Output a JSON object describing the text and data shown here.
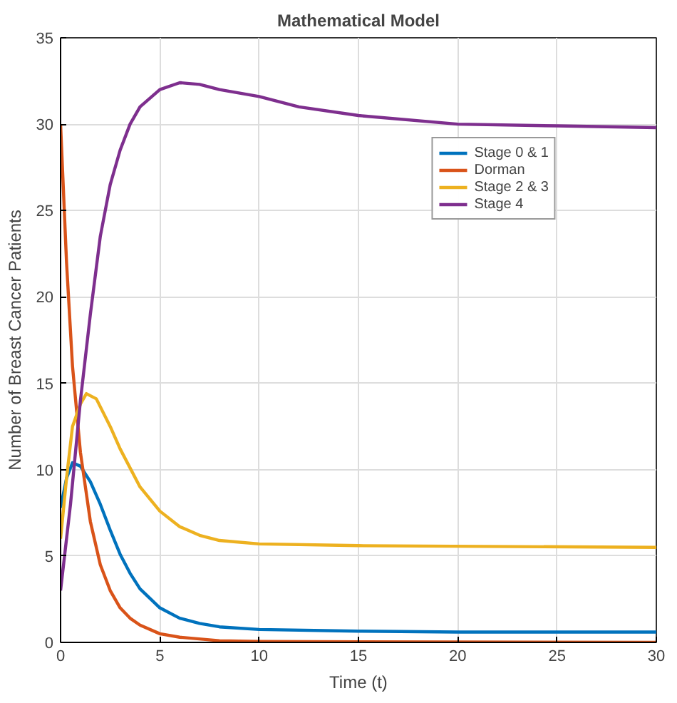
{
  "chart_data": {
    "type": "line",
    "title": "Mathematical Model",
    "xlabel": "Time (t)",
    "ylabel": "Number of Breast Cancer Patients",
    "xlim": [
      0,
      30
    ],
    "ylim": [
      0,
      35
    ],
    "xticks": [
      0,
      5,
      10,
      15,
      20,
      25,
      30
    ],
    "yticks": [
      0,
      5,
      10,
      15,
      20,
      25,
      30,
      35
    ],
    "grid": true,
    "legend": "top right",
    "line_style": "solid",
    "series": [
      {
        "name": "Stage 0 & 1",
        "color": "#0072bd",
        "x": [
          0,
          0.3,
          0.6,
          1,
          1.5,
          2,
          2.5,
          3,
          3.5,
          4,
          5,
          6,
          7,
          8,
          10,
          15,
          20,
          30
        ],
        "values": [
          7.8,
          9.5,
          10.4,
          10.2,
          9.3,
          8,
          6.5,
          5.1,
          4,
          3.1,
          2,
          1.4,
          1.1,
          0.9,
          0.75,
          0.65,
          0.6,
          0.6
        ]
      },
      {
        "name": "Dorman",
        "color": "#d95319",
        "x": [
          0,
          0.3,
          0.6,
          1,
          1.5,
          2,
          2.5,
          3,
          3.5,
          4,
          5,
          6,
          8,
          10,
          30
        ],
        "values": [
          30,
          22,
          16,
          11,
          7,
          4.5,
          3,
          2,
          1.4,
          1,
          0.5,
          0.3,
          0.1,
          0.05,
          0
        ]
      },
      {
        "name": "Stage 2 & 3",
        "color": "#edb120",
        "x": [
          0,
          0.3,
          0.6,
          1,
          1.3,
          1.8,
          2.5,
          3,
          4,
          5,
          6,
          7,
          8,
          10,
          15,
          30
        ],
        "values": [
          6,
          9.5,
          12.5,
          13.8,
          14.4,
          14.1,
          12.5,
          11.2,
          9,
          7.6,
          6.7,
          6.2,
          5.9,
          5.7,
          5.6,
          5.5
        ]
      },
      {
        "name": "Stage 4",
        "color": "#7e2f8e",
        "x": [
          0,
          0.5,
          1,
          1.5,
          2,
          2.5,
          3,
          3.5,
          4,
          5,
          6,
          7,
          8,
          10,
          12,
          15,
          20,
          25,
          30
        ],
        "values": [
          3,
          8,
          14,
          19,
          23.5,
          26.5,
          28.5,
          30,
          31,
          32,
          32.4,
          32.3,
          32,
          31.6,
          31,
          30.5,
          30,
          29.9,
          29.8
        ]
      }
    ]
  }
}
